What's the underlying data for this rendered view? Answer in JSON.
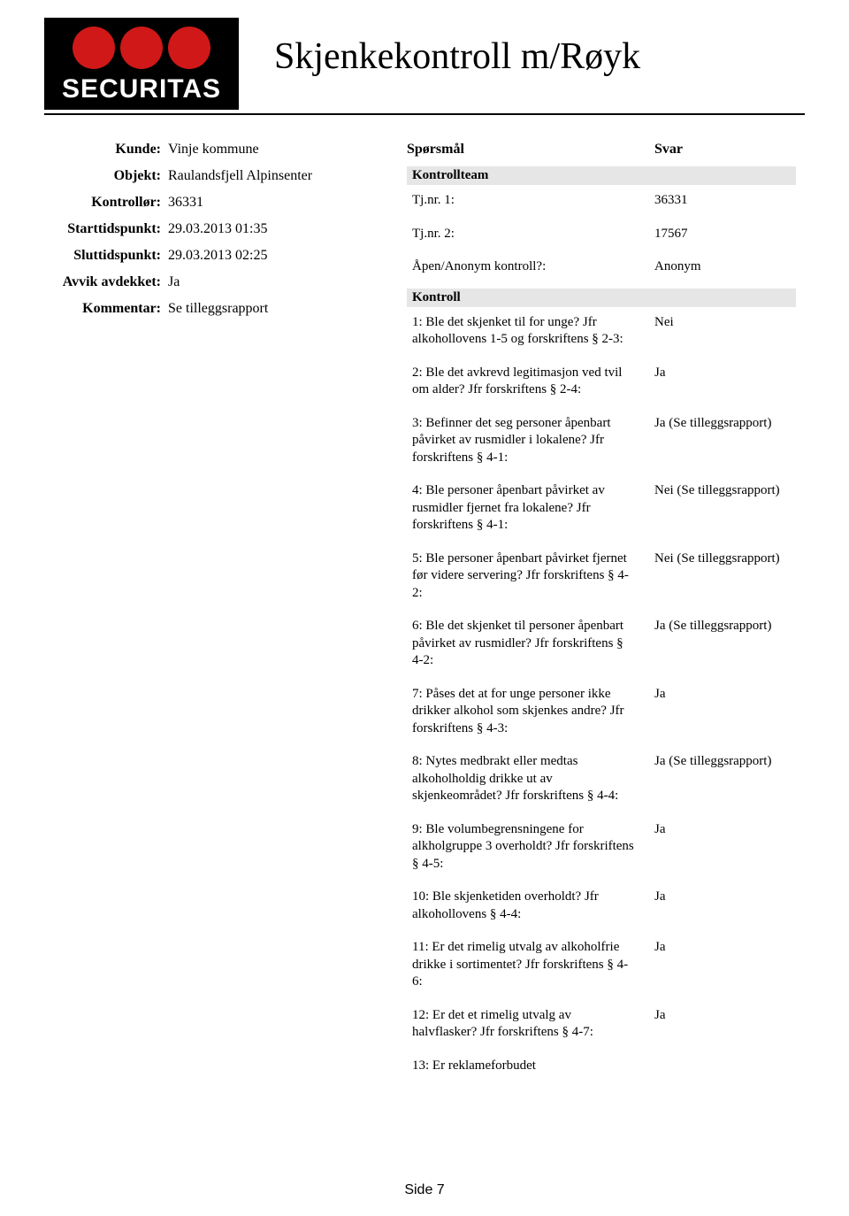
{
  "logo_text": "SECURITAS",
  "title": "Skjenkekontroll m/Røyk",
  "meta": {
    "kunde_label": "Kunde:",
    "kunde_value": "Vinje kommune",
    "objekt_label": "Objekt:",
    "objekt_value": "Raulandsfjell Alpinsenter",
    "kontrollor_label": "Kontrollør:",
    "kontrollor_value": "36331",
    "starttid_label": "Starttidspunkt:",
    "starttid_value": "29.03.2013 01:35",
    "sluttid_label": "Sluttidspunkt:",
    "sluttid_value": "29.03.2013 02:25",
    "avvik_label": "Avvik avdekket:",
    "avvik_value": "Ja",
    "kommentar_label": "Kommentar:",
    "kommentar_value": "Se tilleggsrapport"
  },
  "qa_header": {
    "q": "Spørsmål",
    "a": "Svar"
  },
  "section1": "Kontrollteam",
  "team": [
    {
      "q": "Tj.nr. 1:",
      "a": "36331"
    },
    {
      "q": "Tj.nr. 2:",
      "a": "17567"
    },
    {
      "q": "Åpen/Anonym kontroll?:",
      "a": "Anonym"
    }
  ],
  "section2": "Kontroll",
  "kontroll": [
    {
      "q": "1: Ble det skjenket til for unge? Jfr alkohollovens 1-5 og forskriftens § 2-3:",
      "a": "Nei"
    },
    {
      "q": "2: Ble det avkrevd legitimasjon ved tvil om alder? Jfr forskriftens § 2-4:",
      "a": "Ja"
    },
    {
      "q": "3: Befinner det seg personer åpenbart påvirket av rusmidler i lokalene? Jfr forskriftens § 4-1:",
      "a": "Ja (Se tilleggsrapport)"
    },
    {
      "q": "4: Ble personer åpenbart påvirket av rusmidler fjernet fra lokalene? Jfr forskriftens § 4-1:",
      "a": "Nei (Se tilleggsrapport)"
    },
    {
      "q": "5: Ble personer åpenbart påvirket fjernet før videre servering? Jfr forskriftens § 4-2:",
      "a": "Nei (Se tilleggsrapport)"
    },
    {
      "q": "6: Ble det skjenket til personer åpenbart påvirket av rusmidler? Jfr forskriftens § 4-2:",
      "a": "Ja (Se tilleggsrapport)"
    },
    {
      "q": "7: Påses det at for unge personer ikke drikker alkohol som skjenkes andre? Jfr forskriftens § 4-3:",
      "a": "Ja"
    },
    {
      "q": "8: Nytes medbrakt eller medtas alkoholholdig drikke ut av skjenkeområdet? Jfr forskriftens § 4-4:",
      "a": "Ja (Se tilleggsrapport)"
    },
    {
      "q": "9: Ble volumbegrensningene for alkholgruppe 3 overholdt? Jfr forskriftens § 4-5:",
      "a": "Ja"
    },
    {
      "q": "10: Ble skjenketiden overholdt? Jfr alkohollovens § 4-4:",
      "a": "Ja"
    },
    {
      "q": "11: Er det rimelig utvalg av alkoholfrie drikke i sortimentet? Jfr forskriftens § 4-6:",
      "a": "Ja"
    },
    {
      "q": "12: Er det et rimelig utvalg av halvflasker? Jfr forskriftens § 4-7:",
      "a": "Ja"
    },
    {
      "q": "13: Er reklameforbudet",
      "a": ""
    }
  ],
  "footer": "Side 7"
}
